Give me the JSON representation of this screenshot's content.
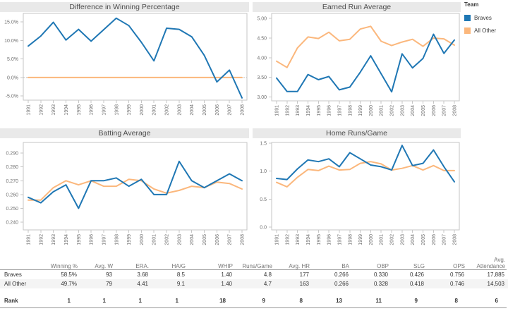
{
  "colors": {
    "braves": "#1f77b4",
    "all_other": "#fbb77c",
    "plot_border": "#c6c6c6",
    "tick": "#c6c6c6",
    "zero_line": "#bcbcbc",
    "title_bg": "#e9e9e9",
    "title_text": "#4e4e4e",
    "axis_text": "#6f6f6f",
    "table_rule": "#9a9a9a",
    "row_stripe": "#f4f4f4",
    "header_text": "#757575",
    "body_text": "#333333"
  },
  "legend": {
    "title": "Team",
    "items": [
      {
        "label": "Braves",
        "color": "#1f77b4"
      },
      {
        "label": "All Other",
        "color": "#fbb77c"
      }
    ]
  },
  "chart_data": [
    {
      "type": "line",
      "title": "Difference in Winning Percentage",
      "x": [
        "1991",
        "1992",
        "1993",
        "1994",
        "1995",
        "1996",
        "1997",
        "1998",
        "1999",
        "2000",
        "2001",
        "2002",
        "2003",
        "2004",
        "2005",
        "2006",
        "2007",
        "2008"
      ],
      "ylim": [
        -6.1,
        17.3
      ],
      "yticks": [
        -5,
        0,
        5,
        10,
        15
      ],
      "ytick_labels": [
        "-5.0%",
        "0.0%",
        "5.0%",
        "10.0%",
        "15.0%"
      ],
      "zero_line": true,
      "grid": false,
      "series": [
        {
          "name": "Braves",
          "color": "#1f77b4",
          "values": [
            8.5,
            11.2,
            14.9,
            10.1,
            13.0,
            9.8,
            12.9,
            16.0,
            14.0,
            9.5,
            4.5,
            13.3,
            13.0,
            11.0,
            6.0,
            -1.2,
            2.0,
            -5.5
          ]
        },
        {
          "name": "All Other",
          "color": "#fbb77c",
          "values": [
            0,
            0,
            0,
            0,
            0,
            0,
            0,
            0,
            0,
            0,
            0,
            0,
            0,
            0,
            0,
            0,
            0,
            0
          ]
        }
      ]
    },
    {
      "type": "line",
      "title": "Earned Run Average",
      "x": [
        "1991",
        "1992",
        "1993",
        "1994",
        "1995",
        "1996",
        "1997",
        "1998",
        "1999",
        "2000",
        "2001",
        "2002",
        "2003",
        "2004",
        "2005",
        "2006",
        "2007",
        "2008"
      ],
      "ylim": [
        2.9,
        5.13
      ],
      "yticks": [
        3.0,
        3.5,
        4.0,
        4.5,
        5.0
      ],
      "ytick_labels": [
        "3.00",
        "3.50",
        "4.00",
        "4.50",
        "5.00"
      ],
      "zero_line": false,
      "grid": false,
      "series": [
        {
          "name": "Braves",
          "color": "#1f77b4",
          "values": [
            3.48,
            3.14,
            3.14,
            3.57,
            3.44,
            3.52,
            3.18,
            3.25,
            3.63,
            4.05,
            3.59,
            3.13,
            4.1,
            3.74,
            3.98,
            4.6,
            4.11,
            4.45
          ]
        },
        {
          "name": "All Other",
          "color": "#fbb77c",
          "values": [
            3.91,
            3.75,
            4.25,
            4.53,
            4.49,
            4.65,
            4.43,
            4.47,
            4.73,
            4.8,
            4.42,
            4.31,
            4.4,
            4.47,
            4.29,
            4.5,
            4.48,
            4.32
          ]
        }
      ]
    },
    {
      "type": "line",
      "title": "Batting Average",
      "x": [
        "1991",
        "1992",
        "1993",
        "1994",
        "1995",
        "1996",
        "1997",
        "1998",
        "1999",
        "2000",
        "2001",
        "2002",
        "2003",
        "2004",
        "2005",
        "2006",
        "2007",
        "2008"
      ],
      "ylim": [
        0.2344,
        0.2977
      ],
      "yticks": [
        0.24,
        0.25,
        0.26,
        0.27,
        0.28,
        0.29
      ],
      "ytick_labels": [
        "0.240",
        "0.250",
        "0.260",
        "0.270",
        "0.280",
        "0.290"
      ],
      "zero_line": false,
      "grid": false,
      "series": [
        {
          "name": "Braves",
          "color": "#1f77b4",
          "values": [
            0.258,
            0.254,
            0.262,
            0.267,
            0.25,
            0.27,
            0.27,
            0.272,
            0.266,
            0.271,
            0.26,
            0.26,
            0.284,
            0.27,
            0.265,
            0.27,
            0.275,
            0.27
          ]
        },
        {
          "name": "All Other",
          "color": "#fbb77c",
          "values": [
            0.256,
            0.256,
            0.265,
            0.27,
            0.267,
            0.27,
            0.266,
            0.266,
            0.271,
            0.27,
            0.264,
            0.261,
            0.263,
            0.266,
            0.265,
            0.269,
            0.268,
            0.264
          ]
        }
      ]
    },
    {
      "type": "line",
      "title": "Home Runs/Game",
      "x": [
        "1991",
        "1992",
        "1993",
        "1994",
        "1995",
        "1996",
        "1997",
        "1998",
        "1999",
        "2000",
        "2001",
        "2002",
        "2003",
        "2004",
        "2005",
        "2006",
        "2007",
        "2008"
      ],
      "ylim": [
        -0.05,
        1.513
      ],
      "yticks": [
        0.0,
        0.5,
        1.0,
        1.5
      ],
      "ytick_labels": [
        "0.0",
        "0.5",
        "1.0",
        "1.5"
      ],
      "zero_line": false,
      "grid": false,
      "series": [
        {
          "name": "Braves",
          "color": "#1f77b4",
          "values": [
            0.87,
            0.85,
            1.04,
            1.2,
            1.17,
            1.22,
            1.08,
            1.33,
            1.22,
            1.11,
            1.08,
            1.02,
            1.46,
            1.1,
            1.14,
            1.38,
            1.08,
            0.81
          ]
        },
        {
          "name": "All Other",
          "color": "#fbb77c",
          "values": [
            0.8,
            0.72,
            0.89,
            1.03,
            1.01,
            1.09,
            1.02,
            1.03,
            1.14,
            1.17,
            1.13,
            1.02,
            1.05,
            1.1,
            1.02,
            1.1,
            1.01,
            1.01
          ]
        }
      ]
    }
  ],
  "table": {
    "columns": [
      "Winning %",
      "Avg. W",
      "ERA.",
      "HA/G",
      "WHIP",
      "Runs/Game",
      "Avg. HR",
      "BA",
      "OBP",
      "SLG",
      "OPS",
      "Avg.\nAttendance"
    ],
    "rows": [
      {
        "label": "Braves",
        "values": [
          "58.5%",
          "93",
          "3.68",
          "8.5",
          "1.40",
          "4.8",
          "177",
          "0.266",
          "0.330",
          "0.426",
          "0.756",
          "17,885"
        ]
      },
      {
        "label": "All Other",
        "values": [
          "49.7%",
          "79",
          "4.41",
          "9.1",
          "1.40",
          "4.7",
          "163",
          "0.266",
          "0.328",
          "0.418",
          "0.746",
          "14,503"
        ]
      }
    ],
    "rank_row": {
      "label": "Rank",
      "values": [
        "1",
        "1",
        "1",
        "1",
        "18",
        "9",
        "8",
        "13",
        "11",
        "9",
        "8",
        "6"
      ]
    }
  }
}
